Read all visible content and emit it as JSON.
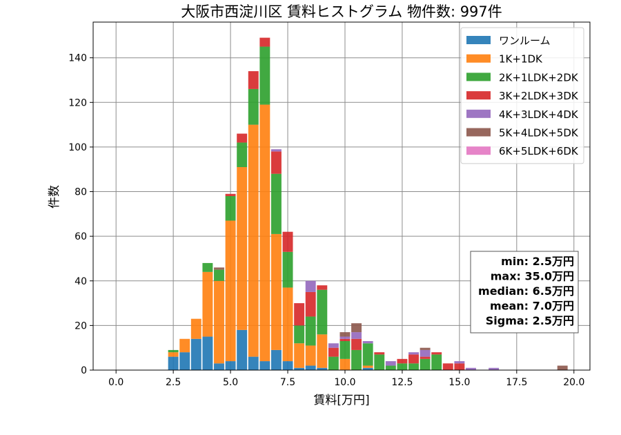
{
  "chart_data": {
    "type": "bar",
    "stacked": true,
    "title": "大阪市西淀川区 賃料ヒストグラム 物件数: 997件",
    "xlabel": "賃料[万円]",
    "ylabel": "件数",
    "xlim": [
      -1.0,
      20.7
    ],
    "ylim": [
      0,
      156
    ],
    "x_ticks": [
      0.0,
      2.5,
      5.0,
      7.5,
      10.0,
      12.5,
      15.0,
      17.5,
      20.0
    ],
    "x_tick_labels": [
      "0.0",
      "2.5",
      "5.0",
      "7.5",
      "10.0",
      "12.5",
      "15.0",
      "17.5",
      "20.0"
    ],
    "y_ticks": [
      0,
      20,
      40,
      60,
      80,
      100,
      120,
      140
    ],
    "y_tick_labels": [
      "0",
      "20",
      "40",
      "60",
      "80",
      "100",
      "120",
      "140"
    ],
    "grid": true,
    "legend_position": "top-right",
    "bin_width": 0.5,
    "bins": [
      2.5,
      3.0,
      3.5,
      4.0,
      4.5,
      5.0,
      5.5,
      6.0,
      6.5,
      7.0,
      7.5,
      8.0,
      8.5,
      9.0,
      9.5,
      10.0,
      10.5,
      11.0,
      11.5,
      12.0,
      12.5,
      13.0,
      13.5,
      14.0,
      14.5,
      15.0,
      15.5,
      16.0,
      16.5,
      17.0,
      17.5,
      18.0,
      18.5,
      19.0,
      19.5
    ],
    "series": [
      {
        "name": "ワンルーム",
        "color": "#1f77b4",
        "values": [
          6,
          8,
          14,
          15,
          3,
          4,
          18,
          6,
          4,
          9,
          4,
          1,
          2,
          1,
          0,
          0,
          0,
          1,
          0,
          0,
          0,
          0,
          0,
          0,
          0,
          0,
          0,
          0,
          0,
          0,
          0,
          0,
          0,
          0,
          0
        ]
      },
      {
        "name": "1K+1DK",
        "color": "#ff7f0e",
        "values": [
          2,
          6,
          9,
          29,
          37,
          63,
          73,
          104,
          115,
          52,
          33,
          11,
          9,
          15,
          0,
          5,
          0,
          1,
          0,
          0,
          0,
          0,
          0,
          0,
          0,
          0,
          0,
          0,
          0,
          0,
          0,
          0,
          0,
          0,
          0
        ]
      },
      {
        "name": "2K+1LDK+2DK",
        "color": "#2ca02c",
        "values": [
          1,
          0,
          0,
          4,
          5,
          11,
          11,
          16,
          26,
          27,
          16,
          8,
          13,
          20,
          6,
          8,
          9,
          10,
          7,
          2,
          3,
          3,
          5,
          7,
          0,
          0,
          0,
          0,
          0,
          0,
          0,
          0,
          0,
          0,
          0
        ]
      },
      {
        "name": "3K+2LDK+3DK",
        "color": "#d62728",
        "values": [
          0,
          0,
          0,
          0,
          0,
          1,
          4,
          8,
          4,
          10,
          9,
          10,
          11,
          2,
          4,
          1,
          5,
          0,
          1,
          0,
          2,
          4,
          1,
          1,
          3,
          3,
          0,
          0,
          0,
          0,
          0,
          0,
          0,
          0,
          0
        ]
      },
      {
        "name": "4K+3LDK+4DK",
        "color": "#9467bd",
        "values": [
          0,
          0,
          0,
          0,
          0,
          0,
          0,
          0,
          0,
          1,
          0,
          0,
          5,
          0,
          2,
          1,
          3,
          1,
          0,
          2,
          0,
          1,
          3,
          0,
          0,
          1,
          1,
          0,
          1,
          0,
          0,
          0,
          0,
          0,
          0
        ]
      },
      {
        "name": "5K+4LDK+5DK",
        "color": "#8c564b",
        "values": [
          0,
          0,
          0,
          0,
          1,
          0,
          0,
          0,
          0,
          0,
          0,
          0,
          0,
          0,
          0,
          2,
          4,
          0,
          0,
          0,
          0,
          0,
          1,
          0,
          0,
          0,
          0,
          0,
          0,
          0,
          0,
          0,
          0,
          0,
          2
        ]
      },
      {
        "name": "6K+5LDK+6DK",
        "color": "#e377c2",
        "values": [
          0,
          0,
          0,
          0,
          0,
          0,
          0,
          0,
          0,
          0,
          0,
          0,
          0,
          0,
          0,
          0,
          0,
          0,
          0,
          0,
          0,
          0,
          0,
          0,
          0,
          0,
          0,
          0,
          0,
          0,
          0,
          0,
          0,
          0,
          0
        ]
      }
    ],
    "stats_box": [
      "min: 2.5万円",
      "max: 35.0万円",
      "median: 6.5万円",
      "mean: 7.0万円",
      "Sigma: 2.5万円"
    ]
  }
}
